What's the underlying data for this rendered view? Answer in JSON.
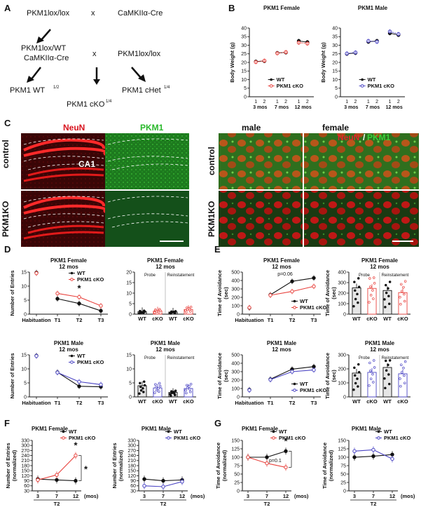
{
  "panel_labels": [
    "A",
    "B",
    "C",
    "D",
    "E",
    "F",
    "G"
  ],
  "colors": {
    "wt": "#111111",
    "cko_female": "#e8413c",
    "cko_male": "#4a44c4",
    "neun": "#d8101c",
    "pkm1": "#28b82a"
  },
  "breeding": {
    "parent1": "PKM1lox/lox",
    "parent2": "CaMKIIα-Cre",
    "cross": "x",
    "f1_line1": "PKM1lox/WT",
    "f1_line2": "CaMKIIα-Cre",
    "backcross": "PKM1lox/lox",
    "out_wt": "PKM1 WT",
    "out_wt_frac": "1/2",
    "out_chet": "PKM1 cHet",
    "out_chet_frac": "1/4",
    "out_cko": "PKM1 cKO",
    "out_cko_frac": "1/4"
  },
  "images": {
    "neun": "NeuN",
    "pkm1": "PKM1",
    "control": "control",
    "ko": "PKM1KO",
    "ca1": "CA1",
    "male": "male",
    "female": "female",
    "merge_neun": "NeuN",
    "merge_sep": "/",
    "merge_pkm1": "PKM1"
  },
  "chart_data": [
    {
      "id": "B1",
      "type": "line",
      "title": "PKM1 Female",
      "ylabel": "Body Weight (g)",
      "ylim": [
        0,
        40
      ],
      "yticks": [
        0,
        5,
        10,
        15,
        20,
        25,
        30,
        35,
        40
      ],
      "xticks": [
        "1",
        "2",
        "1",
        "2",
        "1",
        "2"
      ],
      "groups": [
        "3 mos",
        "7 mos",
        "12 mos"
      ],
      "legend": [
        "WT",
        "PKM1 cKO"
      ],
      "pairs": [
        {
          "wt": [
            20.5,
            20.8
          ],
          "cko": [
            20.2,
            21.0
          ]
        },
        {
          "wt": [
            25.5,
            25.8
          ],
          "cko": [
            25.3,
            26.0
          ]
        },
        {
          "wt": [
            32.5,
            31.8
          ],
          "cko": [
            31.5,
            31.0
          ]
        }
      ]
    },
    {
      "id": "B2",
      "type": "line",
      "title": "PKM1 Male",
      "ylabel": "Body Weight (g)",
      "ylim": [
        0,
        40
      ],
      "yticks": [
        0,
        5,
        10,
        15,
        20,
        25,
        30,
        35,
        40
      ],
      "xticks": [
        "1",
        "2",
        "1",
        "2",
        "1",
        "2"
      ],
      "groups": [
        "3 mos",
        "7 mos",
        "12 mos"
      ],
      "legend": [
        "WT",
        "PKM1 cKO"
      ],
      "pairs": [
        {
          "wt": [
            25.0,
            25.5
          ],
          "cko": [
            25.2,
            25.8
          ]
        },
        {
          "wt": [
            32.0,
            32.5
          ],
          "cko": [
            32.5,
            32.0
          ]
        },
        {
          "wt": [
            37.0,
            36.0
          ],
          "cko": [
            38.0,
            36.5
          ]
        }
      ]
    },
    {
      "id": "D1",
      "type": "line",
      "title": "PKM1 Female",
      "subtitle": "12 mos",
      "ylabel": "Number of Entries",
      "ylim": [
        0,
        15
      ],
      "yticks": [
        0,
        5,
        10,
        15
      ],
      "x": [
        "Habituation",
        "T1",
        "T2",
        "T3"
      ],
      "legend": [
        "WT",
        "PKM1 cKO"
      ],
      "annotations": [
        "*"
      ],
      "series": [
        {
          "name": "WT",
          "values": [
            14.8,
            5.5,
            3.8,
            1.2
          ]
        },
        {
          "name": "PKM1 cKO",
          "values": [
            14.6,
            7.4,
            6.1,
            3.0
          ]
        }
      ]
    },
    {
      "id": "D2",
      "type": "bar",
      "title": "PKM1 Female",
      "subtitle": "12 mos",
      "ylim": [
        0,
        20
      ],
      "yticks": [
        0,
        5,
        10,
        15,
        20
      ],
      "sections": [
        "Probe",
        "Reinstatement"
      ],
      "categories": [
        "WT",
        "cKO",
        "WT",
        "cKO"
      ],
      "values": [
        1.2,
        1.5,
        1.0,
        2.2
      ]
    },
    {
      "id": "D3",
      "type": "line",
      "title": "PKM1 Male",
      "subtitle": "12 mos",
      "ylabel": "Number of Entries",
      "ylim": [
        0,
        15
      ],
      "yticks": [
        0,
        5,
        10,
        15
      ],
      "x": [
        "Habituation",
        "T1",
        "T2",
        "T3"
      ],
      "legend": [
        "WT",
        "PKM1 cKO"
      ],
      "series": [
        {
          "name": "WT",
          "values": [
            14.7,
            8.8,
            3.8,
            3.6
          ]
        },
        {
          "name": "PKM1 cKO",
          "values": [
            14.6,
            8.7,
            5.4,
            4.4
          ]
        }
      ]
    },
    {
      "id": "D4",
      "type": "bar",
      "title": "PKM1 Male",
      "subtitle": "12 mos",
      "ylim": [
        0,
        15
      ],
      "yticks": [
        0,
        5,
        10,
        15
      ],
      "sections": [
        "Probe",
        "Reinstatement"
      ],
      "categories": [
        "WT",
        "cKO",
        "WT",
        "cKO"
      ],
      "values": [
        4.0,
        3.2,
        1.6,
        3.0
      ]
    },
    {
      "id": "E1",
      "type": "line",
      "title": "PKM1 Female",
      "subtitle": "12 mos",
      "ylabel": "Time of Avoidance (sec)",
      "ylim": [
        0,
        500
      ],
      "yticks": [
        0,
        100,
        200,
        300,
        400,
        500
      ],
      "x": [
        "Habituation",
        "T1",
        "T2",
        "T3"
      ],
      "legend": [
        "WT",
        "PKM1 cKO"
      ],
      "annotations": [
        "p=0.06"
      ],
      "series": [
        {
          "name": "WT",
          "values": [
            75,
            230,
            390,
            430
          ]
        },
        {
          "name": "PKM1 cKO",
          "values": [
            78,
            225,
            270,
            330
          ]
        }
      ]
    },
    {
      "id": "E2",
      "type": "bar",
      "title": "PKM1 Female",
      "subtitle": "12 mos",
      "ylabel": "Time of Avoidance (sec)",
      "ylim": [
        0,
        400
      ],
      "yticks": [
        0,
        100,
        200,
        300,
        400
      ],
      "sections": [
        "Probe",
        "Reinstatement"
      ],
      "categories": [
        "WT",
        "cKO",
        "WT",
        "cKO"
      ],
      "values": [
        250,
        245,
        225,
        205
      ]
    },
    {
      "id": "E3",
      "type": "line",
      "title": "PKM1 Male",
      "subtitle": "12 mos",
      "ylabel": "Time of Avoidance (sec)",
      "ylim": [
        0,
        500
      ],
      "yticks": [
        0,
        100,
        200,
        300,
        400,
        500
      ],
      "x": [
        "Habituation",
        "T1",
        "T2",
        "T3"
      ],
      "legend": [
        "WT",
        "PKM1 cKO"
      ],
      "series": [
        {
          "name": "WT",
          "values": [
            85,
            210,
            330,
            360
          ]
        },
        {
          "name": "PKM1 cKO",
          "values": [
            80,
            205,
            300,
            320
          ]
        }
      ]
    },
    {
      "id": "E4",
      "type": "bar",
      "title": "PKM1 Male",
      "subtitle": "12 mos",
      "ylabel": "Time of Avoidance (sec)",
      "ylim": [
        0,
        300
      ],
      "yticks": [
        0,
        100,
        200,
        300
      ],
      "sections": [
        "Probe",
        "Reinstatement"
      ],
      "categories": [
        "WT",
        "cKO",
        "WT",
        "cKO"
      ],
      "values": [
        170,
        175,
        210,
        165
      ]
    },
    {
      "id": "F1",
      "type": "line",
      "title": "PKM1 Female",
      "ylabel": "Number of Entries (normalized)",
      "ylim": [
        30,
        330
      ],
      "yticks": [
        30,
        60,
        90,
        120,
        150,
        180,
        210,
        240,
        270,
        300,
        330
      ],
      "x": [
        "3",
        "7",
        "12"
      ],
      "xunit": "(mos)",
      "xgroup": "T2",
      "legend": [
        "WT",
        "PKM1 cKO"
      ],
      "annotations": [
        "*",
        "*"
      ],
      "series": [
        {
          "name": "WT",
          "values": [
            100,
            95,
            90
          ]
        },
        {
          "name": "PKM1 cKO",
          "values": [
            95,
            125,
            240
          ]
        }
      ]
    },
    {
      "id": "F2",
      "type": "line",
      "title": "PKM1 Male",
      "ylabel": "Number of Entries (normalized)",
      "ylim": [
        30,
        330
      ],
      "yticks": [
        30,
        60,
        90,
        120,
        150,
        180,
        210,
        240,
        270,
        300,
        330
      ],
      "x": [
        "3",
        "7",
        "12"
      ],
      "xunit": "(mos)",
      "xgroup": "T2",
      "legend": [
        "WT",
        "PKM1 cKO"
      ],
      "series": [
        {
          "name": "WT",
          "values": [
            100,
            90,
            95
          ]
        },
        {
          "name": "PKM1 cKO",
          "values": [
            60,
            55,
            85
          ]
        }
      ]
    },
    {
      "id": "G1",
      "type": "line",
      "title": "PKM1 Female",
      "ylabel": "Time of Avoidance (normalized)",
      "ylim": [
        0,
        150
      ],
      "yticks": [
        0,
        25,
        50,
        75,
        100,
        125,
        150
      ],
      "x": [
        "3",
        "7",
        "12"
      ],
      "xunit": "(mos)",
      "xgroup": "T2",
      "legend": [
        "WT",
        "PKM1 cKO"
      ],
      "annotations": [
        "*",
        "p=0.1"
      ],
      "series": [
        {
          "name": "WT",
          "values": [
            100,
            100,
            118
          ]
        },
        {
          "name": "PKM1 cKO",
          "values": [
            100,
            82,
            70
          ]
        }
      ]
    },
    {
      "id": "G2",
      "type": "line",
      "title": "PKM1 Male",
      "ylabel": "Time of Avoidance (normalized)",
      "ylim": [
        0,
        150
      ],
      "yticks": [
        0,
        25,
        50,
        75,
        100,
        125,
        150
      ],
      "x": [
        "3",
        "7",
        "12"
      ],
      "xunit": "(mos)",
      "xgroup": "T2",
      "legend": [
        "WT",
        "PKM1 cKO"
      ],
      "series": [
        {
          "name": "WT",
          "values": [
            100,
            103,
            108
          ]
        },
        {
          "name": "PKM1 cKO",
          "values": [
            118,
            122,
            95
          ]
        }
      ]
    }
  ]
}
